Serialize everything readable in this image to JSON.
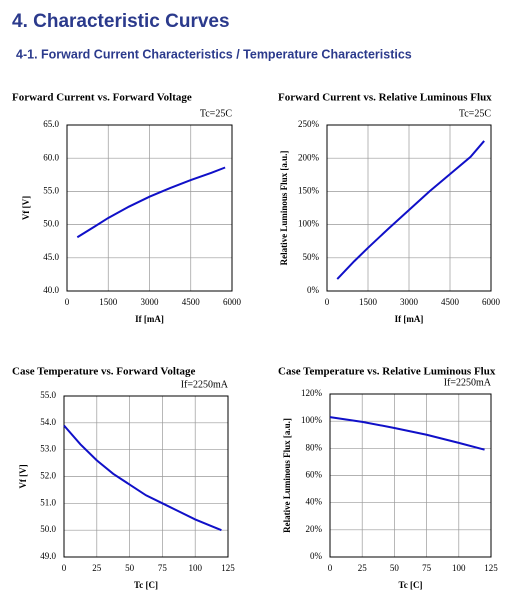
{
  "heading": "4. Characteristic Curves",
  "subheading": "4-1. Forward Current Characteristics / Temperature Characteristics",
  "chart_data": [
    {
      "type": "line",
      "title": "Forward Current vs. Forward Voltage",
      "annotation": "Tc=25C",
      "x_label": "If [mA]",
      "y_label": "Vf [V]",
      "color": "#1010c8",
      "grid": true,
      "x": [
        375,
        1000,
        1500,
        2250,
        3000,
        3750,
        4500,
        5250,
        5750
      ],
      "values": [
        48.1,
        49.7,
        51.0,
        52.7,
        54.2,
        55.5,
        56.7,
        57.8,
        58.6
      ],
      "xlim": [
        0,
        6000
      ],
      "xticks": [
        0,
        1500,
        3000,
        4500,
        6000
      ],
      "ylim": [
        40,
        65
      ],
      "yticks": [
        {
          "value": 40,
          "label": "40.0"
        },
        {
          "value": 45,
          "label": "45.0"
        },
        {
          "value": 50,
          "label": "50.0"
        },
        {
          "value": 55,
          "label": "55.0"
        },
        {
          "value": 60,
          "label": "60.0"
        },
        {
          "value": 65,
          "label": "65.0"
        }
      ]
    },
    {
      "type": "line",
      "title": "Forward Current vs. Relative Luminous Flux",
      "annotation": "Tc=25C",
      "x_label": "If [mA]",
      "y_label": "Relative Luminous Flux [a.u.]",
      "color": "#1010c8",
      "grid": true,
      "x": [
        375,
        1000,
        1500,
        2250,
        3000,
        3750,
        4500,
        5250,
        5750
      ],
      "values": [
        18,
        45,
        65,
        94,
        122,
        150,
        176,
        202,
        226
      ],
      "xlim": [
        0,
        6000
      ],
      "xticks": [
        0,
        1500,
        3000,
        4500,
        6000
      ],
      "ylim": [
        0,
        250
      ],
      "yticks": [
        {
          "value": 0,
          "label": "0%"
        },
        {
          "value": 50,
          "label": "50%"
        },
        {
          "value": 100,
          "label": "100%"
        },
        {
          "value": 150,
          "label": "150%"
        },
        {
          "value": 200,
          "label": "200%"
        },
        {
          "value": 250,
          "label": "250%"
        }
      ]
    },
    {
      "type": "line",
      "title": "Case Temperature vs. Forward Voltage",
      "annotation": "If=2250mA",
      "x_label": "Tc [C]",
      "y_label": "Vf [V]",
      "color": "#1010c8",
      "grid": true,
      "x": [
        0,
        12.5,
        25,
        37.5,
        50,
        62.5,
        75,
        87.5,
        100,
        112.5,
        120
      ],
      "values": [
        53.9,
        53.2,
        52.6,
        52.1,
        51.7,
        51.3,
        51.0,
        50.7,
        50.4,
        50.15,
        50.0
      ],
      "xlim": [
        0,
        125
      ],
      "xticks": [
        0,
        25,
        50,
        75,
        100,
        125
      ],
      "ylim": [
        49,
        55
      ],
      "yticks": [
        {
          "value": 49,
          "label": "49.0"
        },
        {
          "value": 50,
          "label": "50.0"
        },
        {
          "value": 51,
          "label": "51.0"
        },
        {
          "value": 52,
          "label": "52.0"
        },
        {
          "value": 53,
          "label": "53.0"
        },
        {
          "value": 54,
          "label": "54.0"
        },
        {
          "value": 55,
          "label": "55.0"
        }
      ]
    },
    {
      "type": "line",
      "title": "Case Temperature vs. Relative Luminous Flux",
      "annotation": "If=2250mA",
      "x_label": "Tc [C]",
      "y_label": "Relative Luminous Flux [a.u.]",
      "color": "#1010c8",
      "grid": true,
      "x": [
        0,
        25,
        50,
        75,
        100,
        120
      ],
      "values": [
        103,
        99.5,
        95,
        90,
        84,
        79
      ],
      "xlim": [
        0,
        125
      ],
      "xticks": [
        0,
        25,
        50,
        75,
        100,
        125
      ],
      "ylim": [
        0,
        120
      ],
      "yticks": [
        {
          "value": 0,
          "label": "0%"
        },
        {
          "value": 20,
          "label": "20%"
        },
        {
          "value": 40,
          "label": "40%"
        },
        {
          "value": 60,
          "label": "60%"
        },
        {
          "value": 80,
          "label": "80%"
        },
        {
          "value": 100,
          "label": "100%"
        },
        {
          "value": 120,
          "label": "120%"
        }
      ]
    }
  ]
}
